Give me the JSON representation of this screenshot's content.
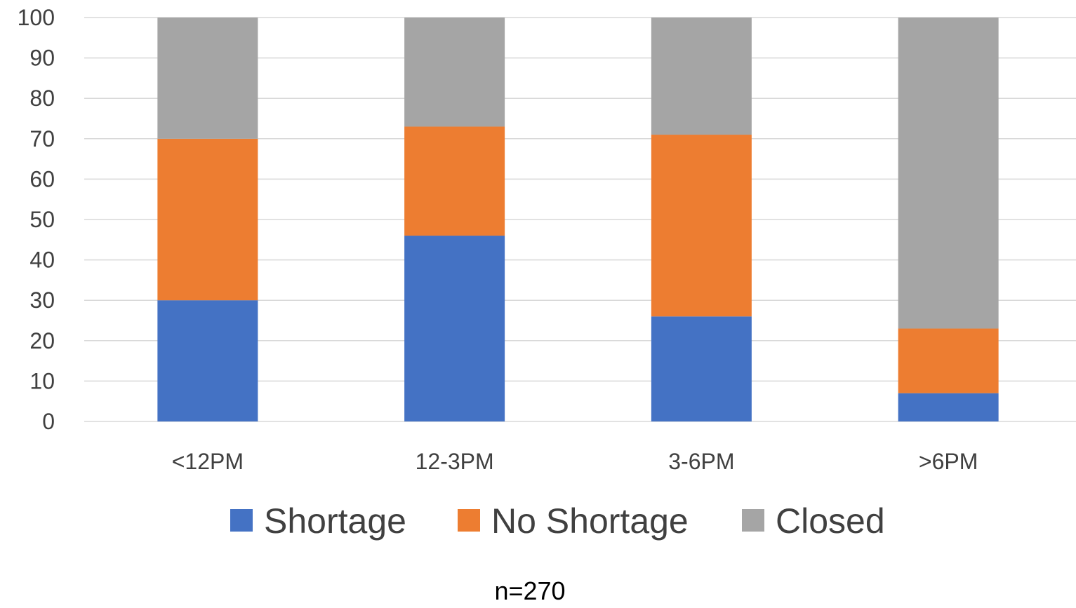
{
  "chart_data": {
    "type": "bar",
    "stacked": true,
    "categories": [
      "<12PM",
      "12-3PM",
      "3-6PM",
      ">6PM"
    ],
    "series": [
      {
        "name": "Shortage",
        "color": "#4472C4",
        "values": [
          30,
          46,
          26,
          7
        ]
      },
      {
        "name": "No Shortage",
        "color": "#ED7D31",
        "values": [
          40,
          27,
          45,
          16
        ]
      },
      {
        "name": "Closed",
        "color": "#A5A5A5",
        "values": [
          30,
          27,
          29,
          77
        ]
      }
    ],
    "ylim": [
      0,
      100
    ],
    "yticks": [
      "0",
      "10",
      "20",
      "30",
      "40",
      "50",
      "60",
      "70",
      "80",
      "90",
      "100"
    ],
    "grid": true,
    "legend_position": "bottom",
    "note": "n=270"
  }
}
